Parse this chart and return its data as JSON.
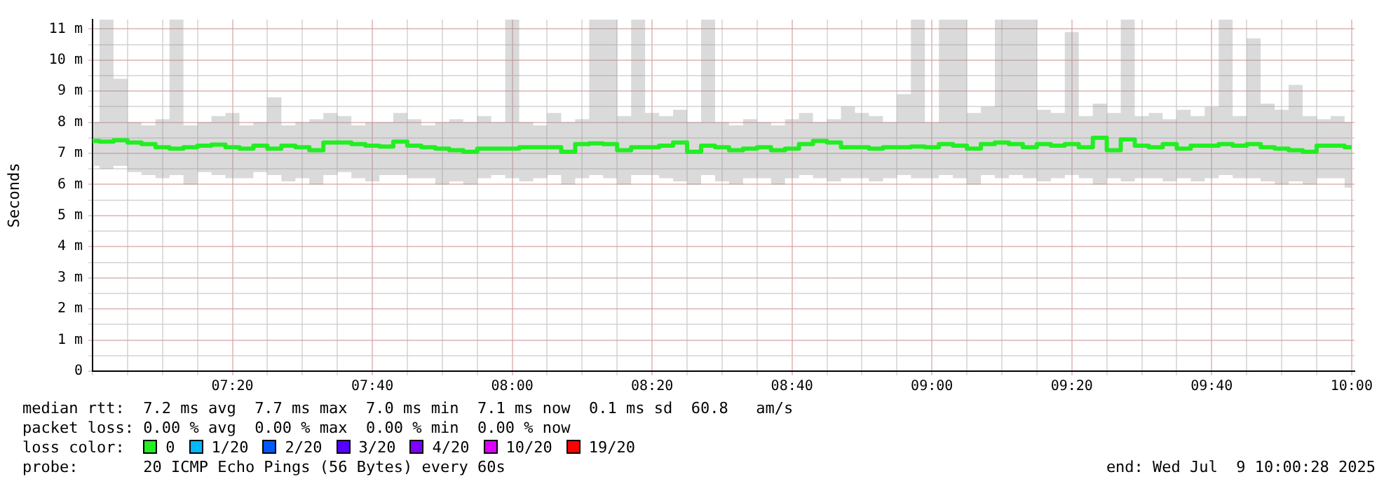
{
  "chart_data": {
    "type": "step",
    "ylabel": "Seconds",
    "legend": false,
    "grid": true,
    "marker": "none",
    "line_style": "solid",
    "xlim": [
      7,
      10.007
    ],
    "ylim": [
      0,
      11.3
    ],
    "xticks": [
      {
        "value": 7,
        "label": null
      },
      {
        "value": 7.0833,
        "label": null
      },
      {
        "value": 7.1667,
        "label": null
      },
      {
        "value": 7.25,
        "label": null
      },
      {
        "value": 7.3333,
        "label": "07:20"
      },
      {
        "value": 7.4167,
        "label": null
      },
      {
        "value": 7.5,
        "label": null
      },
      {
        "value": 7.5833,
        "label": null
      },
      {
        "value": 7.6667,
        "label": "07:40"
      },
      {
        "value": 7.75,
        "label": null
      },
      {
        "value": 7.8333,
        "label": null
      },
      {
        "value": 7.9167,
        "label": null
      },
      {
        "value": 8,
        "label": "08:00"
      },
      {
        "value": 8.0833,
        "label": null
      },
      {
        "value": 8.1667,
        "label": null
      },
      {
        "value": 8.25,
        "label": null
      },
      {
        "value": 8.3333,
        "label": "08:20"
      },
      {
        "value": 8.4167,
        "label": null
      },
      {
        "value": 8.5,
        "label": null
      },
      {
        "value": 8.5833,
        "label": null
      },
      {
        "value": 8.6667,
        "label": "08:40"
      },
      {
        "value": 8.75,
        "label": null
      },
      {
        "value": 8.8333,
        "label": null
      },
      {
        "value": 8.9167,
        "label": null
      },
      {
        "value": 9,
        "label": "09:00"
      },
      {
        "value": 9.0833,
        "label": null
      },
      {
        "value": 9.1667,
        "label": null
      },
      {
        "value": 9.25,
        "label": null
      },
      {
        "value": 9.3333,
        "label": "09:20"
      },
      {
        "value": 9.4167,
        "label": null
      },
      {
        "value": 9.5,
        "label": null
      },
      {
        "value": 9.5833,
        "label": null
      },
      {
        "value": 9.6667,
        "label": "09:40"
      },
      {
        "value": 9.75,
        "label": null
      },
      {
        "value": 9.8333,
        "label": null
      },
      {
        "value": 9.9167,
        "label": null
      },
      {
        "value": 10,
        "label": "10:00"
      }
    ],
    "yticks": [
      {
        "value": 0,
        "label": "0"
      },
      {
        "value": 0.5,
        "label": null
      },
      {
        "value": 1,
        "label": "1 m"
      },
      {
        "value": 1.5,
        "label": null
      },
      {
        "value": 2,
        "label": "2 m"
      },
      {
        "value": 2.5,
        "label": null
      },
      {
        "value": 3,
        "label": "3 m"
      },
      {
        "value": 3.5,
        "label": null
      },
      {
        "value": 4,
        "label": "4 m"
      },
      {
        "value": 4.5,
        "label": null
      },
      {
        "value": 5,
        "label": "5 m"
      },
      {
        "value": 5.5,
        "label": null
      },
      {
        "value": 6,
        "label": "6 m"
      },
      {
        "value": 6.5,
        "label": null
      },
      {
        "value": 7,
        "label": "7 m"
      },
      {
        "value": 7.5,
        "label": null
      },
      {
        "value": 8,
        "label": "8 m"
      },
      {
        "value": 8.5,
        "label": null
      },
      {
        "value": 9,
        "label": "9 m"
      },
      {
        "value": 9.5,
        "label": null
      },
      {
        "value": 10,
        "label": "10 m"
      },
      {
        "value": 10.5,
        "label": null
      },
      {
        "value": 11,
        "label": "11 m"
      }
    ],
    "x": [
      7,
      7.0333,
      7.0667,
      7.1,
      7.1333,
      7.1667,
      7.2,
      7.2333,
      7.2667,
      7.3,
      7.3333,
      7.3667,
      7.4,
      7.4333,
      7.4667,
      7.5,
      7.5333,
      7.5667,
      7.6,
      7.6333,
      7.6667,
      7.7,
      7.7333,
      7.7667,
      7.8,
      7.8333,
      7.8667,
      7.9,
      7.9333,
      7.9667,
      8,
      8.0333,
      8.0667,
      8.1,
      8.1333,
      8.1667,
      8.2,
      8.2333,
      8.2667,
      8.3,
      8.3333,
      8.3667,
      8.4,
      8.4333,
      8.4667,
      8.5,
      8.5333,
      8.5667,
      8.6,
      8.6333,
      8.6667,
      8.7,
      8.7333,
      8.7667,
      8.8,
      8.8333,
      8.8667,
      8.9,
      8.9333,
      8.9667,
      9,
      9.0333,
      9.0667,
      9.1,
      9.1333,
      9.1667,
      9.2,
      9.2333,
      9.2667,
      9.3,
      9.3333,
      9.3667,
      9.4,
      9.4333,
      9.4667,
      9.5,
      9.5333,
      9.5667,
      9.6,
      9.6333,
      9.6667,
      9.7,
      9.7333,
      9.7667,
      9.8,
      9.8333,
      9.8667,
      9.9,
      9.9333,
      9.9667,
      10
    ],
    "series": [
      {
        "color": "#22ee22",
        "values": [
          7.4,
          7.38,
          7.42,
          7.35,
          7.3,
          7.2,
          7.15,
          7.2,
          7.25,
          7.28,
          7.2,
          7.15,
          7.25,
          7.15,
          7.25,
          7.2,
          7.1,
          7.35,
          7.35,
          7.3,
          7.25,
          7.22,
          7.38,
          7.25,
          7.2,
          7.15,
          7.1,
          7.05,
          7.15,
          7.15,
          7.15,
          7.2,
          7.2,
          7.2,
          7.05,
          7.3,
          7.32,
          7.3,
          7.1,
          7.2,
          7.2,
          7.25,
          7.35,
          7.05,
          7.25,
          7.2,
          7.1,
          7.15,
          7.2,
          7.1,
          7.15,
          7.3,
          7.4,
          7.35,
          7.2,
          7.2,
          7.15,
          7.2,
          7.2,
          7.22,
          7.2,
          7.3,
          7.25,
          7.15,
          7.3,
          7.35,
          7.3,
          7.2,
          7.3,
          7.25,
          7.3,
          7.2,
          7.5,
          7.1,
          7.45,
          7.25,
          7.2,
          7.3,
          7.15,
          7.25,
          7.25,
          7.3,
          7.25,
          7.3,
          7.2,
          7.15,
          7.1,
          7.05,
          7.25,
          7.25,
          7.2
        ],
        "lower": [
          6.6,
          6.5,
          6.6,
          6.4,
          6.3,
          6.2,
          6.3,
          6.0,
          6.4,
          6.3,
          6.2,
          6.2,
          6.4,
          6.3,
          6.1,
          6.2,
          6.0,
          6.3,
          6.4,
          6.2,
          6.1,
          6.3,
          6.3,
          6.2,
          6.2,
          6.0,
          6.1,
          6.0,
          6.2,
          6.3,
          6.2,
          6.1,
          6.2,
          6.3,
          6.0,
          6.2,
          6.3,
          6.2,
          6.0,
          6.3,
          6.3,
          6.2,
          6.1,
          6.0,
          6.3,
          6.1,
          6.0,
          6.2,
          6.2,
          6.0,
          6.2,
          6.3,
          6.2,
          6.1,
          6.2,
          6.2,
          6.1,
          6.2,
          6.3,
          6.2,
          6.2,
          6.3,
          6.2,
          6.0,
          6.3,
          6.2,
          6.3,
          6.2,
          6.1,
          6.2,
          6.3,
          6.2,
          6.0,
          6.2,
          6.1,
          6.2,
          6.2,
          6.1,
          6.2,
          6.1,
          6.2,
          6.3,
          6.2,
          6.2,
          6.1,
          6.0,
          6.1,
          6.0,
          6.2,
          6.2,
          5.9
        ],
        "upper": [
          8.0,
          11.3,
          9.4,
          8.0,
          7.9,
          8.1,
          11.3,
          7.9,
          8.0,
          8.2,
          8.3,
          7.9,
          8.0,
          8.8,
          7.9,
          8.0,
          8.1,
          8.3,
          8.2,
          7.9,
          8.0,
          8.0,
          8.3,
          8.1,
          7.9,
          8.0,
          8.1,
          8.0,
          8.2,
          8.0,
          11.3,
          8.0,
          7.9,
          8.3,
          8.0,
          8.1,
          11.3,
          11.3,
          8.2,
          11.3,
          8.3,
          8.2,
          8.4,
          8.0,
          11.3,
          8.0,
          7.9,
          8.1,
          8.0,
          7.9,
          8.1,
          8.3,
          8.0,
          8.1,
          8.5,
          8.3,
          8.2,
          8.0,
          8.9,
          11.3,
          8.0,
          11.3,
          11.3,
          8.3,
          8.5,
          11.3,
          11.3,
          11.3,
          8.4,
          8.3,
          10.9,
          8.2,
          8.6,
          8.3,
          11.3,
          8.2,
          8.3,
          8.1,
          8.4,
          8.2,
          8.5,
          11.3,
          8.2,
          10.7,
          8.6,
          8.4,
          9.2,
          8.2,
          8.1,
          8.2,
          8.0
        ]
      }
    ],
    "annotations": [
      "median rtt:  7.2 ms avg  7.7 ms max  7.0 ms min  7.1 ms now  0.1 ms sd  60.8   am/s",
      "packet loss: 0.00 % avg  0.00 % max  0.00 % min  0.00 % now",
      "loss color:",
      "0",
      "1/20",
      "2/20",
      "3/20",
      "4/20",
      "10/20",
      "19/20",
      "probe:       20 ICMP Echo Pings (56 Bytes) every 60s",
      "end: Wed Jul  9 10:00:28 2025"
    ]
  }
}
